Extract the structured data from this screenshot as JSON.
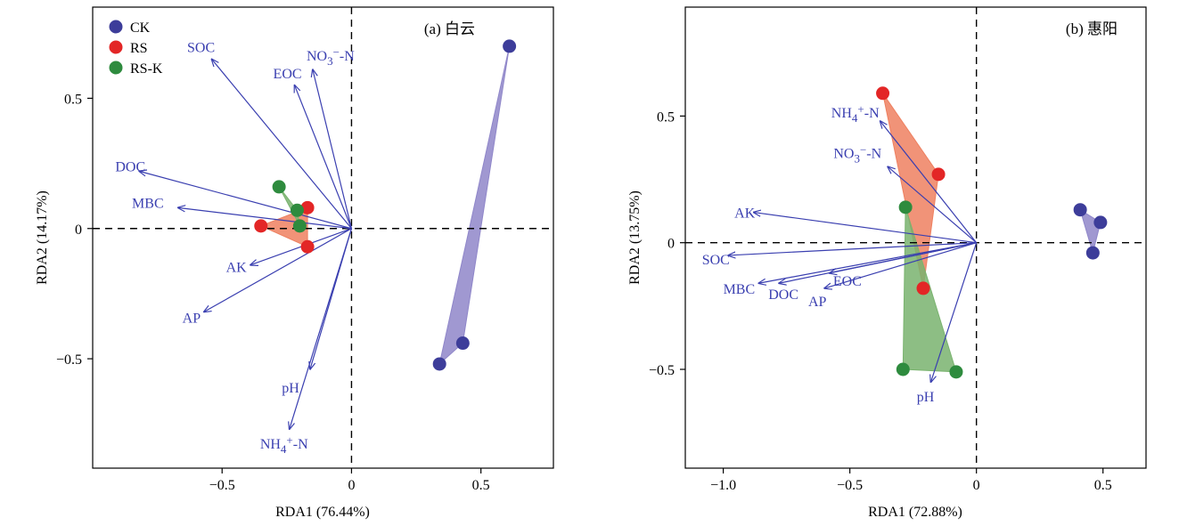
{
  "chart_data": [
    {
      "type": "scatter",
      "panel_label": "(a) 白云",
      "xlabel": "RDA1 (76.44%)",
      "ylabel": "RDA2 (14.17%)",
      "xlim": [
        -1.0,
        0.78
      ],
      "ylim": [
        -0.92,
        0.85
      ],
      "xticks": [
        {
          "v": -0.5,
          "label": "−0.5"
        },
        {
          "v": 0,
          "label": "0"
        },
        {
          "v": 0.5,
          "label": "0.5"
        }
      ],
      "yticks": [
        {
          "v": -0.5,
          "label": "−0.5"
        },
        {
          "v": 0,
          "label": "0"
        },
        {
          "v": 0.5,
          "label": "0.5"
        }
      ],
      "legend": {
        "position": "top-left",
        "entries": [
          {
            "name": "CK",
            "color": "#3d3d9a"
          },
          {
            "name": "RS",
            "color": "#e32626"
          },
          {
            "name": "RS-K",
            "color": "#2e8b3e"
          }
        ]
      },
      "groups": [
        {
          "name": "CK",
          "color": "#3d3d9a",
          "hull_color": "#8f86c9",
          "points": [
            [
              0.61,
              0.7
            ],
            [
              0.43,
              -0.44
            ],
            [
              0.34,
              -0.52
            ]
          ]
        },
        {
          "name": "RS",
          "color": "#e32626",
          "hull_color": "#ee8060",
          "points": [
            [
              -0.17,
              0.08
            ],
            [
              -0.17,
              -0.07
            ],
            [
              -0.35,
              0.01
            ]
          ]
        },
        {
          "name": "RS-K",
          "color": "#2e8b3e",
          "hull_color": "#79b36e",
          "points": [
            [
              -0.28,
              0.16
            ],
            [
              -0.21,
              0.07
            ],
            [
              -0.2,
              0.01
            ]
          ]
        }
      ],
      "arrows": [
        {
          "name": "SOC",
          "html": "SOC",
          "x": -0.54,
          "y": 0.65
        },
        {
          "name": "NO3-N",
          "html": "NO<tspan dy='5' font-size='13'>3</tspan><tspan dy='-10' font-size='13'>−</tspan><tspan dy='5'>-N</tspan>",
          "x": -0.15,
          "y": 0.61
        },
        {
          "name": "EOC",
          "html": "EOC",
          "x": -0.22,
          "y": 0.55
        },
        {
          "name": "DOC",
          "html": "DOC",
          "x": -0.82,
          "y": 0.22
        },
        {
          "name": "MBC",
          "html": "MBC",
          "x": -0.67,
          "y": 0.08
        },
        {
          "name": "AK",
          "html": "AK",
          "x": -0.39,
          "y": -0.14
        },
        {
          "name": "AP",
          "html": "AP",
          "x": -0.57,
          "y": -0.32
        },
        {
          "name": "pH",
          "html": "pH",
          "x": -0.16,
          "y": -0.54
        },
        {
          "name": "NH4-N",
          "html": "NH<tspan dy='5' font-size='13'>4</tspan><tspan dy='-10' font-size='13'>+</tspan><tspan dy='5'>-N</tspan>",
          "x": -0.24,
          "y": -0.77
        }
      ]
    },
    {
      "type": "scatter",
      "panel_label": "(b) 惠阳",
      "xlabel": "RDA1 (72.88%)",
      "ylabel": "RDA2 (13.75%)",
      "xlim": [
        -1.15,
        0.67
      ],
      "ylim": [
        -0.89,
        0.93
      ],
      "xticks": [
        {
          "v": -1.0,
          "label": "−1.0"
        },
        {
          "v": -0.5,
          "label": "−0.5"
        },
        {
          "v": 0,
          "label": "0"
        },
        {
          "v": 0.5,
          "label": "0.5"
        }
      ],
      "yticks": [
        {
          "v": -0.5,
          "label": "−0.5"
        },
        {
          "v": 0,
          "label": "0"
        },
        {
          "v": 0.5,
          "label": "0.5"
        }
      ],
      "groups": [
        {
          "name": "CK",
          "color": "#3d3d9a",
          "hull_color": "#8f86c9",
          "points": [
            [
              0.41,
              0.13
            ],
            [
              0.49,
              0.08
            ],
            [
              0.46,
              -0.04
            ]
          ]
        },
        {
          "name": "RS",
          "color": "#e32626",
          "hull_color": "#ee8060",
          "points": [
            [
              -0.37,
              0.59
            ],
            [
              -0.15,
              0.27
            ],
            [
              -0.21,
              -0.18
            ]
          ]
        },
        {
          "name": "RS-K",
          "color": "#2e8b3e",
          "hull_color": "#79b36e",
          "points": [
            [
              -0.28,
              0.14
            ],
            [
              -0.29,
              -0.5
            ],
            [
              -0.08,
              -0.51
            ]
          ]
        }
      ],
      "arrows": [
        {
          "name": "NH4-N",
          "html": "NH<tspan dy='5' font-size='13'>4</tspan><tspan dy='-10' font-size='13'>+</tspan><tspan dy='5'>-N</tspan>",
          "x": -0.38,
          "y": 0.48
        },
        {
          "name": "NO3-N",
          "html": "NO<tspan dy='5' font-size='13'>3</tspan><tspan dy='-10' font-size='13'>−</tspan><tspan dy='5'>-N</tspan>",
          "x": -0.35,
          "y": 0.3
        },
        {
          "name": "AK",
          "html": "AK",
          "x": -0.88,
          "y": 0.12
        },
        {
          "name": "SOC",
          "html": "SOC",
          "x": -0.98,
          "y": -0.05
        },
        {
          "name": "MBC",
          "html": "MBC",
          "x": -0.86,
          "y": -0.16
        },
        {
          "name": "DOC",
          "html": "DOC",
          "x": -0.78,
          "y": -0.16
        },
        {
          "name": "EOC",
          "html": "EOC",
          "x": -0.58,
          "y": -0.12
        },
        {
          "name": "AP",
          "html": "AP",
          "x": -0.6,
          "y": -0.18
        },
        {
          "name": "pH",
          "html": "pH",
          "x": -0.18,
          "y": -0.55
        }
      ]
    }
  ]
}
